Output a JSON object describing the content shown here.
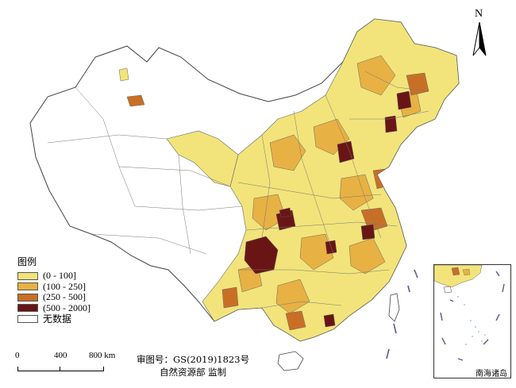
{
  "colors": {
    "c1": "#f2e47a",
    "c2": "#e8b143",
    "c3": "#c96f25",
    "c4": "#6a1515",
    "none": "#ffffff",
    "border": "#555555"
  },
  "legend": {
    "title": "图例",
    "items": [
      {
        "label": "(0 - 100]",
        "color_key": "c1"
      },
      {
        "label": "(100 - 250]",
        "color_key": "c2"
      },
      {
        "label": "(250 - 500]",
        "color_key": "c3"
      },
      {
        "label": "(500 - 2000]",
        "color_key": "c4"
      },
      {
        "label": "无数据",
        "color_key": "none"
      }
    ]
  },
  "scale": {
    "label_0": "0",
    "label_1": "400",
    "label_2": "800 km"
  },
  "credit": {
    "line1": "审图号：GS(2019)1823号",
    "line2": "自然资源部  监制"
  },
  "inset": {
    "label": "南海诸岛"
  },
  "north_arrow": {
    "letter": "N"
  }
}
